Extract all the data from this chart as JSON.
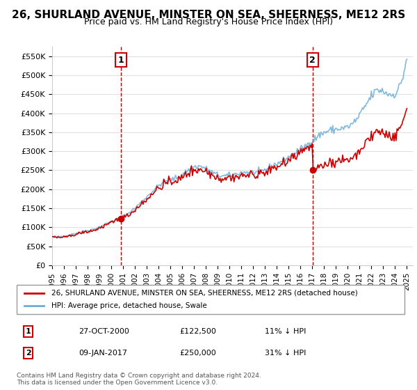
{
  "title": "26, SHURLAND AVENUE, MINSTER ON SEA, SHEERNESS, ME12 2RS",
  "subtitle": "Price paid vs. HM Land Registry's House Price Index (HPI)",
  "legend_line1": "26, SHURLAND AVENUE, MINSTER ON SEA, SHEERNESS, ME12 2RS (detached house)",
  "legend_line2": "HPI: Average price, detached house, Swale",
  "annotation1_label": "1",
  "annotation1_date": "27-OCT-2000",
  "annotation1_price": "£122,500",
  "annotation1_hpi": "11% ↓ HPI",
  "annotation1_year": 2000.82,
  "annotation1_value": 122500,
  "annotation2_label": "2",
  "annotation2_date": "09-JAN-2017",
  "annotation2_price": "£250,000",
  "annotation2_hpi": "31% ↓ HPI",
  "annotation2_year": 2017.03,
  "annotation2_value": 250000,
  "hpi_color": "#6baed6",
  "price_color": "#cc0000",
  "vline_color": "#cc0000",
  "marker_color": "#cc0000",
  "background_color": "#ffffff",
  "grid_color": "#e0e0e0",
  "ylim_min": 0,
  "ylim_max": 575000,
  "copyright": "Contains HM Land Registry data © Crown copyright and database right 2024.\nThis data is licensed under the Open Government Licence v3.0."
}
